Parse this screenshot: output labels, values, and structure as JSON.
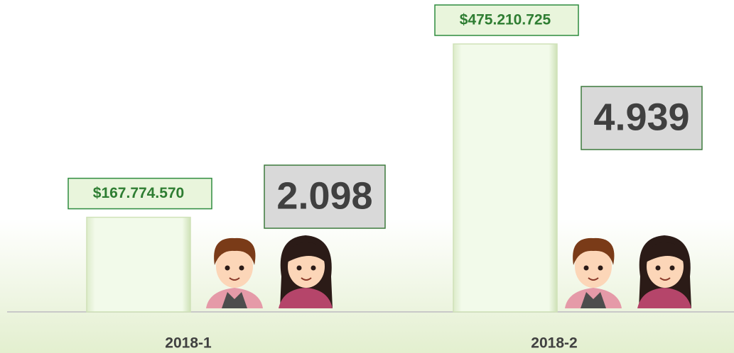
{
  "chart_data": {
    "type": "bar",
    "categories": [
      "2018-1",
      "2018-2"
    ],
    "values": [
      167774570,
      475210725
    ],
    "value_labels": [
      "$167.774.570",
      "$475.210.725"
    ],
    "color": "#eef8e2",
    "counts": [
      2098,
      4939
    ],
    "count_labels": [
      "2.098",
      "4.939"
    ]
  }
}
